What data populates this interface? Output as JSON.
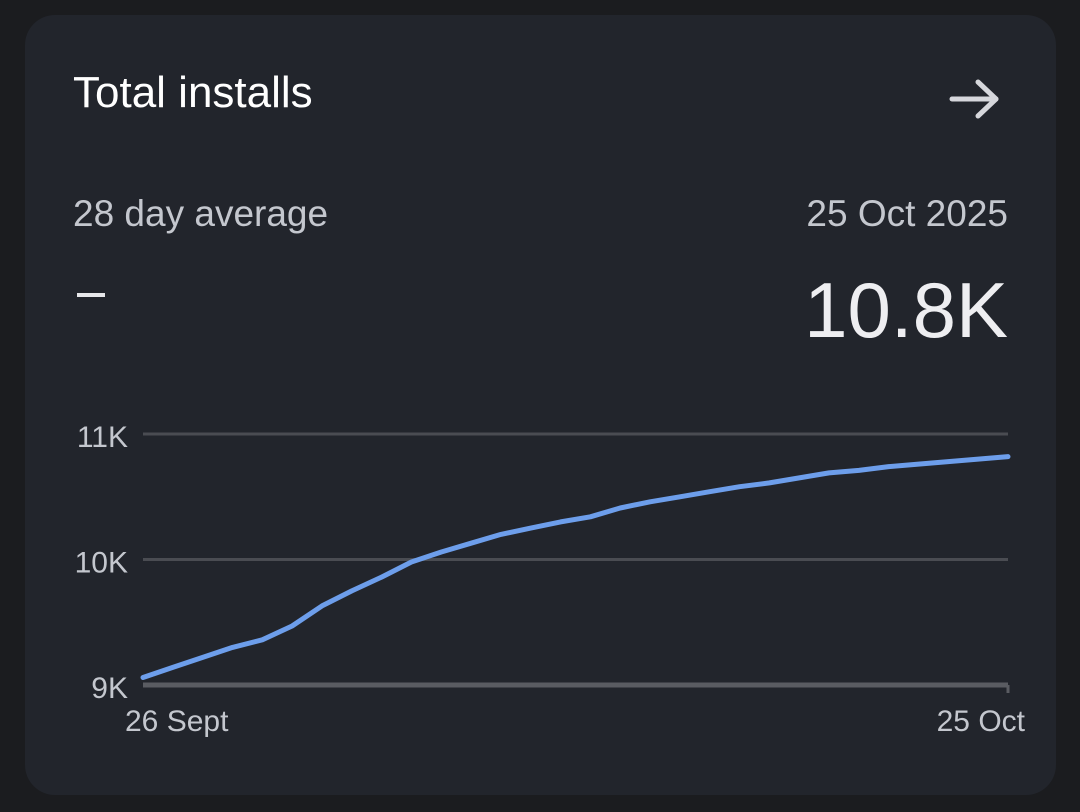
{
  "card": {
    "title": "Total installs",
    "average_label": "28 day average",
    "average_value": "–",
    "date_label": "25 Oct 2025",
    "current_value": "10.8K"
  },
  "icons": {
    "open": "arrow-right-icon"
  },
  "colors": {
    "background": "#1b1c1f",
    "card": "#22252c",
    "line": "#6d9eeb",
    "grid": "#4a4c52",
    "text_primary": "#ffffff",
    "text_secondary": "#c4c7ce"
  },
  "chart_data": {
    "type": "line",
    "x_tick_labels": [
      "26 Sept",
      "25 Oct"
    ],
    "y_tick_labels": [
      "11K",
      "10K",
      "9K"
    ],
    "y_ticks": [
      11000,
      10000,
      9000
    ],
    "ylim": [
      9000,
      11000
    ],
    "grid": true,
    "x": [
      "26 Sept",
      "27 Sept",
      "28 Sept",
      "29 Sept",
      "30 Sept",
      "1 Oct",
      "2 Oct",
      "3 Oct",
      "4 Oct",
      "5 Oct",
      "6 Oct",
      "7 Oct",
      "8 Oct",
      "9 Oct",
      "10 Oct",
      "11 Oct",
      "12 Oct",
      "13 Oct",
      "14 Oct",
      "15 Oct",
      "16 Oct",
      "17 Oct",
      "18 Oct",
      "19 Oct",
      "20 Oct",
      "21 Oct",
      "22 Oct",
      "23 Oct",
      "24 Oct",
      "25 Oct"
    ],
    "series": [
      {
        "values": [
          9060,
          9140,
          9220,
          9300,
          9360,
          9470,
          9630,
          9750,
          9860,
          9980,
          10060,
          10130,
          10200,
          10250,
          10300,
          10340,
          10410,
          10460,
          10500,
          10540,
          10580,
          10610,
          10650,
          10690,
          10710,
          10740,
          10760,
          10780,
          10800,
          10820
        ]
      }
    ]
  }
}
